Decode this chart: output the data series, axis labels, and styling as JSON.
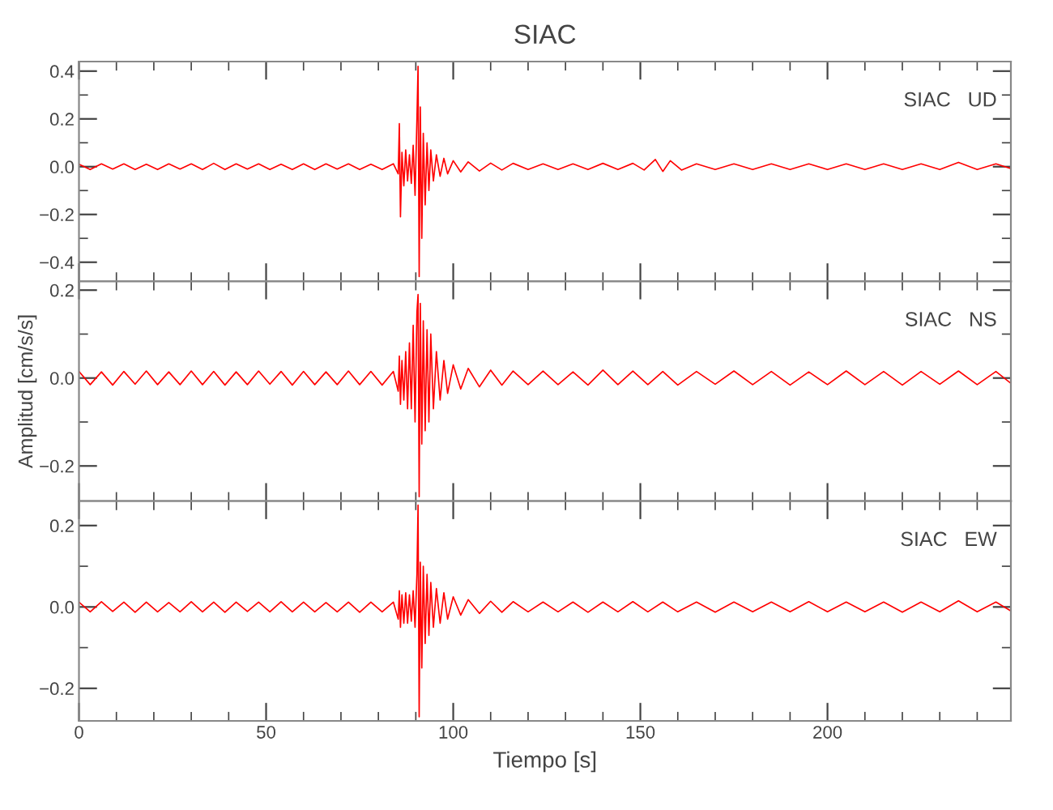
{
  "chart_data": [
    {
      "type": "line",
      "title": "SIAC",
      "tick_labels": "y",
      "grid": false,
      "legend": false,
      "xlim": [
        0,
        249
      ],
      "ylim": [
        -0.48,
        0.44
      ],
      "xticks": [
        0,
        {
          "value": 10,
          "label": null
        },
        {
          "value": 20,
          "label": null
        },
        {
          "value": 30,
          "label": null
        },
        {
          "value": 40,
          "label": null
        },
        50,
        {
          "value": 60,
          "label": null
        },
        {
          "value": 70,
          "label": null
        },
        {
          "value": 80,
          "label": null
        },
        {
          "value": 90,
          "label": null
        },
        100,
        {
          "value": 110,
          "label": null
        },
        {
          "value": 120,
          "label": null
        },
        {
          "value": 130,
          "label": null
        },
        {
          "value": 140,
          "label": null
        },
        150,
        {
          "value": 160,
          "label": null
        },
        {
          "value": 170,
          "label": null
        },
        {
          "value": 180,
          "label": null
        },
        {
          "value": 190,
          "label": null
        },
        200,
        {
          "value": 210,
          "label": null
        },
        {
          "value": 220,
          "label": null
        },
        {
          "value": 230,
          "label": null
        },
        {
          "value": 240,
          "label": null
        }
      ],
      "yticks": [
        {
          "value": -0.4,
          "label": "−0.4"
        },
        {
          "value": -0.3,
          "label": null
        },
        {
          "value": -0.2,
          "label": "−0.2"
        },
        {
          "value": -0.1,
          "label": null
        },
        {
          "value": 0.0,
          "label": "0.0"
        },
        {
          "value": 0.1,
          "label": null
        },
        {
          "value": 0.2,
          "label": "0.2"
        },
        {
          "value": 0.3,
          "label": null
        },
        {
          "value": 0.4,
          "label": "0.4"
        }
      ],
      "series": [
        {
          "name": "SIAC   UD",
          "color": "#ff0000",
          "x": [
            0,
            3,
            6,
            9,
            12,
            15,
            18,
            21,
            24,
            27,
            30,
            33,
            36,
            39,
            42,
            45,
            48,
            51,
            54,
            57,
            60,
            63,
            66,
            69,
            72,
            75,
            78,
            81,
            84,
            85.3,
            85.6,
            85.9,
            86.3,
            86.8,
            87.3,
            87.8,
            88.3,
            88.8,
            89.3,
            89.8,
            90.3,
            90.6,
            90.9,
            91.2,
            91.6,
            92.0,
            92.5,
            93.0,
            93.5,
            94.0,
            94.7,
            95.5,
            96.5,
            97.5,
            98.5,
            100,
            102,
            104,
            107,
            110,
            113,
            116,
            120,
            124,
            128,
            132,
            136,
            140,
            144,
            148,
            151,
            154,
            156,
            158,
            161,
            165,
            170,
            175,
            180,
            185,
            190,
            195,
            200,
            205,
            210,
            215,
            220,
            225,
            230,
            235,
            240,
            245,
            249
          ],
          "values": [
            0.01,
            -0.012,
            0.012,
            -0.01,
            0.012,
            -0.012,
            0.01,
            -0.012,
            0.012,
            -0.01,
            0.012,
            -0.012,
            0.014,
            -0.012,
            0.012,
            -0.01,
            0.012,
            -0.012,
            0.01,
            -0.012,
            0.012,
            -0.012,
            0.012,
            -0.01,
            0.012,
            -0.012,
            0.01,
            -0.012,
            0.012,
            -0.03,
            0.18,
            -0.21,
            0.06,
            -0.08,
            0.07,
            -0.06,
            0.05,
            -0.07,
            0.09,
            -0.12,
            0.2,
            0.42,
            -0.46,
            0.25,
            -0.3,
            0.14,
            -0.16,
            0.1,
            -0.1,
            0.07,
            -0.06,
            0.05,
            -0.04,
            0.035,
            -0.03,
            0.025,
            -0.022,
            0.02,
            -0.018,
            0.015,
            -0.014,
            0.014,
            -0.012,
            0.012,
            -0.012,
            0.012,
            -0.012,
            0.014,
            -0.012,
            0.014,
            -0.014,
            0.03,
            -0.02,
            0.025,
            -0.014,
            0.012,
            -0.012,
            0.012,
            -0.012,
            0.012,
            -0.012,
            0.012,
            -0.012,
            0.012,
            -0.012,
            0.012,
            -0.012,
            0.012,
            -0.012,
            0.018,
            -0.012,
            0.012,
            -0.008
          ]
        }
      ]
    },
    {
      "type": "line",
      "ylabel": "Amplitud [cm/s/s]",
      "tick_labels": "y",
      "grid": false,
      "legend": false,
      "xlim": [
        0,
        249
      ],
      "ylim": [
        -0.28,
        0.22
      ],
      "xticks": [
        0,
        {
          "value": 10,
          "label": null
        },
        {
          "value": 20,
          "label": null
        },
        {
          "value": 30,
          "label": null
        },
        {
          "value": 40,
          "label": null
        },
        50,
        {
          "value": 60,
          "label": null
        },
        {
          "value": 70,
          "label": null
        },
        {
          "value": 80,
          "label": null
        },
        {
          "value": 90,
          "label": null
        },
        100,
        {
          "value": 110,
          "label": null
        },
        {
          "value": 120,
          "label": null
        },
        {
          "value": 130,
          "label": null
        },
        {
          "value": 140,
          "label": null
        },
        150,
        {
          "value": 160,
          "label": null
        },
        {
          "value": 170,
          "label": null
        },
        {
          "value": 180,
          "label": null
        },
        {
          "value": 190,
          "label": null
        },
        200,
        {
          "value": 210,
          "label": null
        },
        {
          "value": 220,
          "label": null
        },
        {
          "value": 230,
          "label": null
        },
        {
          "value": 240,
          "label": null
        }
      ],
      "yticks": [
        {
          "value": -0.2,
          "label": "−0.2"
        },
        {
          "value": -0.1,
          "label": null
        },
        {
          "value": 0.0,
          "label": "0.0"
        },
        {
          "value": 0.1,
          "label": null
        },
        {
          "value": 0.2,
          "label": "0.2"
        }
      ],
      "series": [
        {
          "name": "SIAC   NS",
          "color": "#ff0000",
          "x": [
            0,
            3,
            6,
            9,
            12,
            15,
            18,
            21,
            24,
            27,
            30,
            33,
            36,
            39,
            42,
            45,
            48,
            51,
            54,
            57,
            60,
            63,
            66,
            69,
            72,
            75,
            78,
            81,
            84,
            85.3,
            85.6,
            85.9,
            86.3,
            86.8,
            87.3,
            87.8,
            88.3,
            88.8,
            89.3,
            89.8,
            90.3,
            90.6,
            90.9,
            91.2,
            91.6,
            92.0,
            92.5,
            93.0,
            93.5,
            94.0,
            94.7,
            95.5,
            96.5,
            97.5,
            98.5,
            100,
            102,
            104,
            107,
            110,
            113,
            116,
            120,
            124,
            128,
            132,
            136,
            140,
            144,
            148,
            152,
            156,
            160,
            165,
            170,
            175,
            180,
            185,
            190,
            195,
            200,
            205,
            210,
            215,
            220,
            225,
            230,
            235,
            240,
            245,
            249
          ],
          "values": [
            0.015,
            -0.015,
            0.014,
            -0.016,
            0.015,
            -0.014,
            0.016,
            -0.015,
            0.014,
            -0.015,
            0.016,
            -0.015,
            0.015,
            -0.016,
            0.014,
            -0.015,
            0.016,
            -0.014,
            0.015,
            -0.016,
            0.015,
            -0.015,
            0.014,
            -0.015,
            0.016,
            -0.015,
            0.015,
            -0.016,
            0.015,
            -0.03,
            0.05,
            -0.06,
            0.04,
            -0.05,
            0.06,
            -0.07,
            0.08,
            -0.07,
            0.12,
            -0.1,
            0.15,
            0.19,
            -0.27,
            0.17,
            -0.15,
            0.13,
            -0.12,
            0.11,
            -0.1,
            0.1,
            -0.07,
            0.06,
            -0.05,
            0.04,
            -0.035,
            0.03,
            -0.025,
            0.022,
            -0.02,
            0.018,
            -0.016,
            0.016,
            -0.015,
            0.016,
            -0.015,
            0.014,
            -0.016,
            0.018,
            -0.015,
            0.016,
            -0.015,
            0.015,
            -0.016,
            0.015,
            -0.014,
            0.016,
            -0.015,
            0.015,
            -0.016,
            0.014,
            -0.015,
            0.016,
            -0.015,
            0.015,
            -0.016,
            0.015,
            -0.014,
            0.016,
            -0.015,
            0.015,
            -0.012
          ]
        }
      ]
    },
    {
      "type": "line",
      "xlabel": "Tiempo [s]",
      "grid": false,
      "legend": false,
      "xlim": [
        0,
        249
      ],
      "ylim": [
        -0.28,
        0.26
      ],
      "xticks": [
        0,
        {
          "value": 10,
          "label": null
        },
        {
          "value": 20,
          "label": null
        },
        {
          "value": 30,
          "label": null
        },
        {
          "value": 40,
          "label": null
        },
        50,
        {
          "value": 60,
          "label": null
        },
        {
          "value": 70,
          "label": null
        },
        {
          "value": 80,
          "label": null
        },
        {
          "value": 90,
          "label": null
        },
        100,
        {
          "value": 110,
          "label": null
        },
        {
          "value": 120,
          "label": null
        },
        {
          "value": 130,
          "label": null
        },
        {
          "value": 140,
          "label": null
        },
        150,
        {
          "value": 160,
          "label": null
        },
        {
          "value": 170,
          "label": null
        },
        {
          "value": 180,
          "label": null
        },
        {
          "value": 190,
          "label": null
        },
        200,
        {
          "value": 210,
          "label": null
        },
        {
          "value": 220,
          "label": null
        },
        {
          "value": 230,
          "label": null
        },
        {
          "value": 240,
          "label": null
        }
      ],
      "yticks": [
        {
          "value": -0.2,
          "label": "−0.2"
        },
        {
          "value": -0.1,
          "label": null
        },
        {
          "value": 0.0,
          "label": "0.0"
        },
        {
          "value": 0.1,
          "label": null
        },
        {
          "value": 0.2,
          "label": "0.2"
        }
      ],
      "series": [
        {
          "name": "SIAC   EW",
          "color": "#ff0000",
          "x": [
            0,
            3,
            6,
            9,
            12,
            15,
            18,
            21,
            24,
            27,
            30,
            33,
            36,
            39,
            42,
            45,
            48,
            51,
            54,
            57,
            60,
            63,
            66,
            69,
            72,
            75,
            78,
            81,
            84,
            85.3,
            85.6,
            85.9,
            86.3,
            86.8,
            87.3,
            87.8,
            88.3,
            88.8,
            89.3,
            89.8,
            90.3,
            90.6,
            90.9,
            91.2,
            91.6,
            92.0,
            92.5,
            93.0,
            93.5,
            94.0,
            94.7,
            95.5,
            96.5,
            97.5,
            98.5,
            100,
            102,
            104,
            107,
            110,
            113,
            116,
            120,
            124,
            128,
            132,
            136,
            140,
            144,
            148,
            152,
            156,
            160,
            165,
            170,
            175,
            180,
            185,
            190,
            195,
            200,
            205,
            210,
            215,
            220,
            225,
            230,
            235,
            240,
            245,
            249
          ],
          "values": [
            0.012,
            -0.012,
            0.013,
            -0.011,
            0.012,
            -0.013,
            0.012,
            -0.012,
            0.011,
            -0.012,
            0.013,
            -0.012,
            0.012,
            -0.013,
            0.012,
            -0.011,
            0.012,
            -0.012,
            0.013,
            -0.012,
            0.012,
            -0.012,
            0.011,
            -0.012,
            0.012,
            -0.013,
            0.012,
            -0.012,
            0.012,
            -0.03,
            0.04,
            -0.05,
            0.03,
            -0.04,
            0.035,
            -0.04,
            0.03,
            -0.035,
            0.04,
            -0.05,
            0.08,
            0.25,
            -0.27,
            0.11,
            -0.15,
            0.1,
            -0.09,
            0.08,
            -0.07,
            0.06,
            -0.05,
            0.045,
            -0.04,
            0.035,
            -0.03,
            0.025,
            -0.02,
            0.018,
            -0.016,
            0.014,
            -0.013,
            0.013,
            -0.012,
            0.012,
            -0.012,
            0.012,
            -0.013,
            0.012,
            -0.012,
            0.013,
            -0.012,
            0.012,
            -0.012,
            0.012,
            -0.013,
            0.012,
            -0.012,
            0.012,
            -0.012,
            0.013,
            -0.012,
            0.012,
            -0.012,
            0.012,
            -0.013,
            0.012,
            -0.012,
            0.015,
            -0.012,
            0.012,
            -0.01
          ]
        }
      ]
    }
  ]
}
